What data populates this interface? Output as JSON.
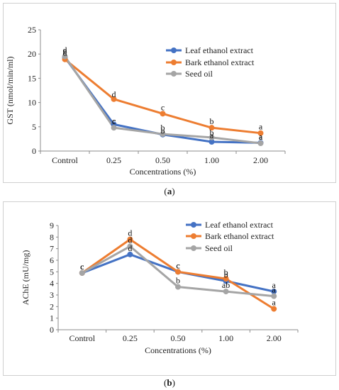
{
  "captions": [
    {
      "open": "(",
      "letter": "a",
      "close": ")"
    },
    {
      "open": "(",
      "letter": "b",
      "close": ")"
    }
  ],
  "chart_data": [
    {
      "type": "line",
      "categories": [
        "Control",
        "0.25",
        "0.50",
        "1.00",
        "2.00"
      ],
      "xlabel": "Concentrations (%)",
      "ylabel": "GST (nmol/min/ml)",
      "ylim": [
        0,
        25
      ],
      "yticks": [
        0,
        5,
        10,
        15,
        20,
        25
      ],
      "grid": false,
      "legend_position": "top-right",
      "series": [
        {
          "name": "Leaf ethanol extract",
          "color": "#4472C4",
          "values": [
            19.3,
            5.5,
            3.4,
            1.9,
            1.7
          ],
          "letters": [
            "e",
            "c",
            "b",
            "a",
            "a"
          ]
        },
        {
          "name": "Bark ethanol extract",
          "color": "#ED7D31",
          "values": [
            18.9,
            10.7,
            7.7,
            4.8,
            3.7
          ],
          "letters": [
            "d",
            "d",
            "c",
            "b",
            "a"
          ]
        },
        {
          "name": "Seed oil",
          "color": "#A5A5A5",
          "values": [
            19.5,
            4.8,
            3.5,
            2.8,
            1.6
          ],
          "letters": [
            "d",
            "c",
            "b",
            "b",
            "a"
          ]
        }
      ]
    },
    {
      "type": "line",
      "categories": [
        "Control",
        "0.25",
        "0.50",
        "1.00",
        "2.00"
      ],
      "xlabel": "Concentrations (%)",
      "ylabel": "AChE (mU/mg)",
      "ylim": [
        0,
        9
      ],
      "yticks": [
        0,
        1,
        2,
        3,
        4,
        5,
        6,
        7,
        8,
        9
      ],
      "grid": false,
      "legend_position": "top-right",
      "series": [
        {
          "name": "Leaf ethanol extract",
          "color": "#4472C4",
          "values": [
            4.9,
            6.5,
            5.0,
            4.2,
            3.3
          ],
          "letters": [
            "c",
            "d",
            "c",
            "b",
            "a"
          ]
        },
        {
          "name": "Bark ethanol extract",
          "color": "#ED7D31",
          "values": [
            4.9,
            7.8,
            5.0,
            4.4,
            1.8
          ],
          "letters": [
            "c",
            "d",
            "c",
            "b",
            "a"
          ]
        },
        {
          "name": "Seed oil",
          "color": "#A5A5A5",
          "values": [
            4.9,
            7.2,
            3.7,
            3.3,
            2.9
          ],
          "letters": [
            "c",
            "d",
            "b",
            "ab",
            "a"
          ]
        }
      ]
    }
  ]
}
